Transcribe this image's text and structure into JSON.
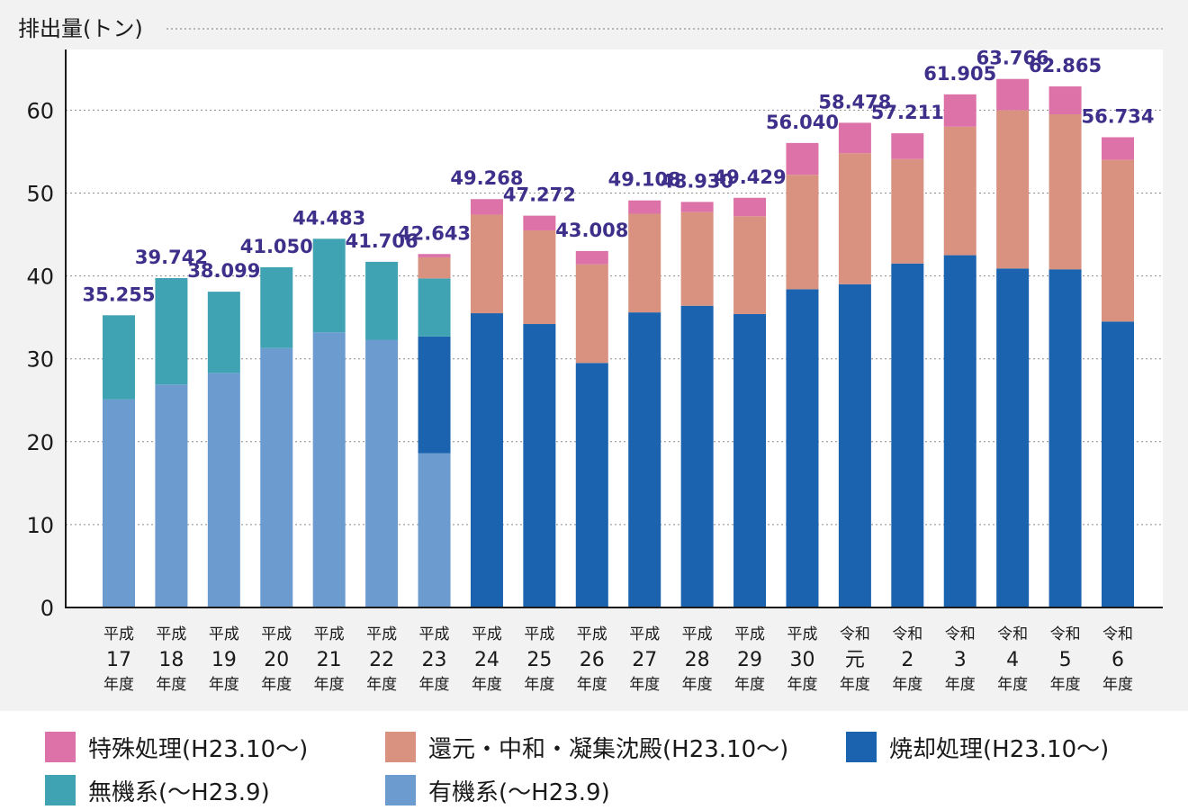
{
  "chart_data": {
    "type": "bar",
    "stacked": true,
    "ylabel": "排出量(トン)",
    "ylim": [
      0,
      70
    ],
    "yticks": [
      0,
      10,
      20,
      30,
      40,
      50,
      60
    ],
    "grid": true,
    "legend_position": "bottom",
    "categories": [
      [
        "平成",
        "17",
        "年度"
      ],
      [
        "平成",
        "18",
        "年度"
      ],
      [
        "平成",
        "19",
        "年度"
      ],
      [
        "平成",
        "20",
        "年度"
      ],
      [
        "平成",
        "21",
        "年度"
      ],
      [
        "平成",
        "22",
        "年度"
      ],
      [
        "平成",
        "23",
        "年度"
      ],
      [
        "平成",
        "24",
        "年度"
      ],
      [
        "平成",
        "25",
        "年度"
      ],
      [
        "平成",
        "26",
        "年度"
      ],
      [
        "平成",
        "27",
        "年度"
      ],
      [
        "平成",
        "28",
        "年度"
      ],
      [
        "平成",
        "29",
        "年度"
      ],
      [
        "平成",
        "30",
        "年度"
      ],
      [
        "令和",
        "元",
        "年度"
      ],
      [
        "令和",
        "2",
        "年度"
      ],
      [
        "令和",
        "3",
        "年度"
      ],
      [
        "令和",
        "4",
        "年度"
      ],
      [
        "令和",
        "5",
        "年度"
      ],
      [
        "令和",
        "6",
        "年度"
      ]
    ],
    "totals": [
      "35.255",
      "39.742",
      "38.099",
      "41.050",
      "44.483",
      "41.706",
      "42.643",
      "49.268",
      "47.272",
      "43.008",
      "49.108",
      "48.930",
      "49.429",
      "56.040",
      "58.478",
      "57.211",
      "61.905",
      "63.766",
      "62.865",
      "56.734"
    ],
    "series": [
      {
        "name": "有機系(〜H23.9)",
        "color": "#6b9bcf",
        "values": [
          25.1,
          26.9,
          28.3,
          31.3,
          33.2,
          32.3,
          18.6,
          0,
          0,
          0,
          0,
          0,
          0,
          0,
          0,
          0,
          0,
          0,
          0,
          0
        ]
      },
      {
        "name": "焼却処理(H23.10〜)",
        "color": "#1b63ae",
        "values": [
          0,
          0,
          0,
          0,
          0,
          0,
          14.1,
          35.5,
          34.2,
          29.5,
          35.6,
          36.4,
          35.4,
          38.4,
          39.0,
          41.5,
          42.5,
          40.9,
          40.8,
          34.5
        ]
      },
      {
        "name": "無機系(〜H23.9)",
        "color": "#3fa3b3",
        "values": [
          10.155,
          12.842,
          9.799,
          9.75,
          11.283,
          9.406,
          7.0,
          0,
          0,
          0,
          0,
          0,
          0,
          0,
          0,
          0,
          0,
          0,
          0,
          0
        ]
      },
      {
        "name": "還元・中和・凝集沈殿(H23.10〜)",
        "color": "#d99280",
        "values": [
          0,
          0,
          0,
          0,
          0,
          0,
          2.543,
          11.9,
          11.3,
          11.9,
          11.9,
          11.3,
          11.8,
          13.8,
          15.8,
          12.6,
          15.5,
          19.1,
          18.7,
          19.5
        ]
      },
      {
        "name": "特殊処理(H23.10〜)",
        "color": "#dc72a8",
        "values": [
          0,
          0,
          0,
          0,
          0,
          0,
          0.4,
          1.868,
          1.772,
          1.608,
          1.608,
          1.23,
          2.229,
          3.84,
          3.678,
          3.111,
          3.905,
          3.766,
          3.365,
          2.734
        ]
      }
    ]
  },
  "colors": {
    "label_color": "#3d2f8a",
    "background": "#f2f2f2",
    "plot_background": "#ffffff"
  },
  "legend": {
    "items": [
      {
        "label": "特殊処理(H23.10〜)",
        "color": "#dc72a8"
      },
      {
        "label": "還元・中和・凝集沈殿(H23.10〜)",
        "color": "#d99280"
      },
      {
        "label": "焼却処理(H23.10〜)",
        "color": "#1b63ae"
      },
      {
        "label": "無機系(〜H23.9)",
        "color": "#3fa3b3"
      },
      {
        "label": "有機系(〜H23.9)",
        "color": "#6b9bcf"
      }
    ]
  }
}
